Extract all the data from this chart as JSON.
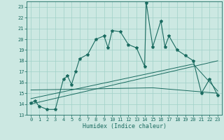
{
  "xlabel": "Humidex (Indice chaleur)",
  "xlim": [
    -0.5,
    23.5
  ],
  "ylim": [
    13,
    23.5
  ],
  "yticks": [
    13,
    14,
    15,
    16,
    17,
    18,
    19,
    20,
    21,
    22,
    23
  ],
  "xticks": [
    0,
    1,
    2,
    3,
    4,
    5,
    6,
    7,
    8,
    9,
    10,
    11,
    12,
    13,
    14,
    15,
    16,
    17,
    18,
    19,
    20,
    21,
    22,
    23
  ],
  "bg_color": "#cce8e2",
  "grid_color": "#a0d0c8",
  "line_color": "#1a6b60",
  "main_x": [
    0,
    0.5,
    1,
    2,
    3,
    4,
    4.5,
    5,
    5.5,
    6,
    7,
    8,
    9,
    9.5,
    10,
    11,
    12,
    13,
    14,
    14.2,
    15,
    16,
    16.5,
    17,
    18,
    19,
    20,
    21,
    22,
    23
  ],
  "main_y": [
    14.1,
    14.3,
    13.8,
    13.5,
    13.5,
    16.3,
    16.6,
    15.8,
    17.0,
    18.2,
    18.6,
    20.0,
    20.3,
    19.2,
    20.8,
    20.7,
    19.5,
    19.2,
    17.5,
    23.4,
    19.3,
    21.7,
    19.3,
    20.3,
    19.0,
    18.5,
    18.0,
    15.0,
    16.3,
    14.8
  ],
  "trend1_x": [
    0,
    23
  ],
  "trend1_y": [
    14.0,
    18.0
  ],
  "trend2_x": [
    0,
    20,
    23
  ],
  "trend2_y": [
    14.5,
    17.7,
    15.2
  ],
  "trend3_x": [
    0,
    15,
    23
  ],
  "trend3_y": [
    15.3,
    15.5,
    15.0
  ]
}
